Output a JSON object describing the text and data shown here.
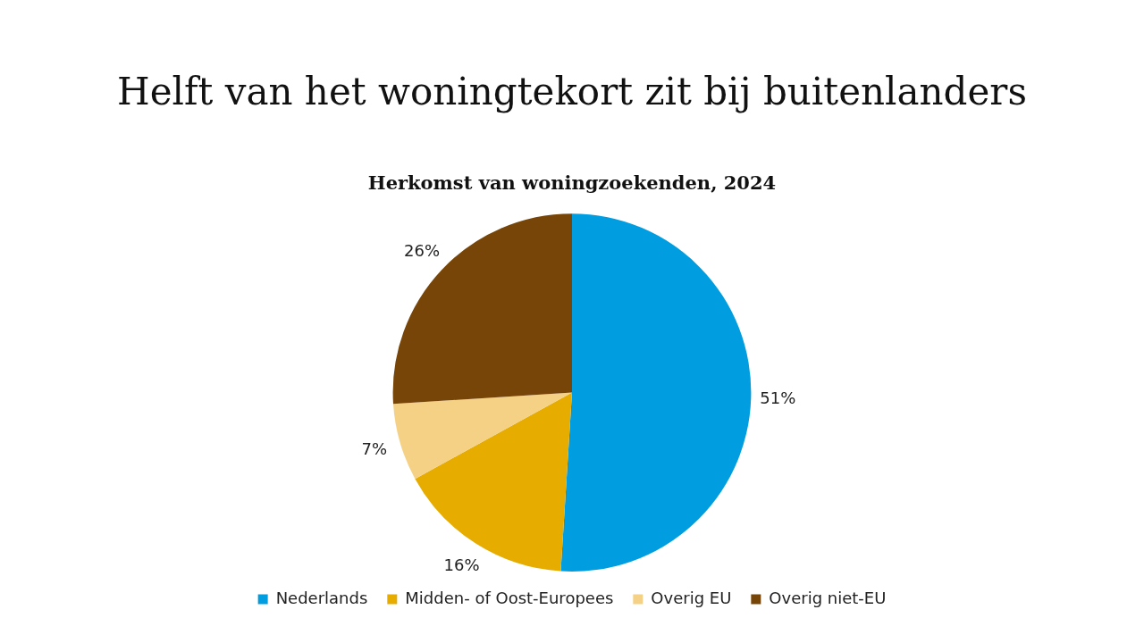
{
  "chart_data": {
    "type": "pie",
    "title": "Helft van het woningtekort zit bij buitenlanders",
    "subtitle": "Herkomst van woningzoekenden, 2024",
    "categories": [
      "Nederlands",
      "Midden- of Oost-Europees",
      "Overig EU",
      "Overig niet-EU"
    ],
    "values": [
      51,
      16,
      7,
      26
    ],
    "colors": [
      "#009ee0",
      "#e6ac00",
      "#f5d185",
      "#774508"
    ],
    "value_labels": [
      "51%",
      "16%",
      "7%",
      "26%"
    ],
    "legend": "bottom"
  }
}
